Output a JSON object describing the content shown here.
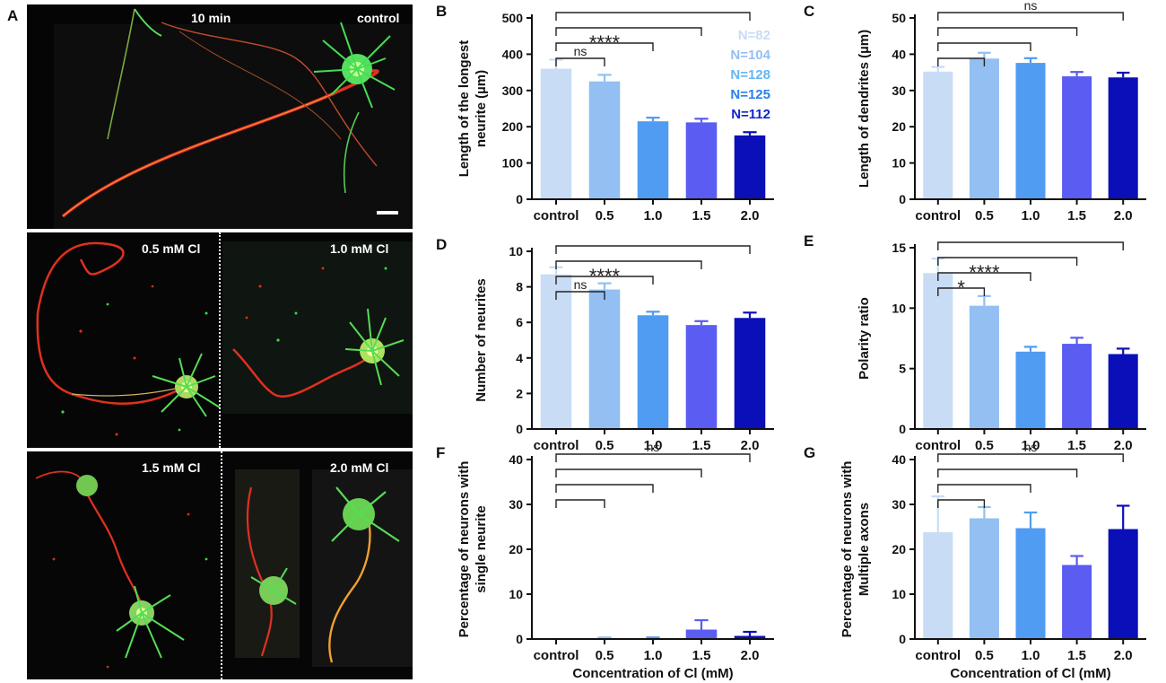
{
  "figure": {
    "panel_a": {
      "letter": "A",
      "top": {
        "left_label": "10 min",
        "right_label": "control"
      },
      "middle": {
        "left_label": "0.5 mM Cl",
        "right_label": "1.0 mM Cl"
      },
      "bottom": {
        "left_label": "1.5 mM Cl",
        "right_label": "2.0 mM Cl"
      }
    },
    "colors": {
      "bars": [
        "#c8dcf5",
        "#93bff2",
        "#4f9cf2",
        "#5a5cf2",
        "#0a0fb8"
      ],
      "n_labels": [
        "#c8dcf5",
        "#93bff2",
        "#65b5f2",
        "#2c7ee8",
        "#1424c8"
      ],
      "neurite_red": "#e03020",
      "neurite_green": "#33dd44",
      "axis": "#111111"
    }
  },
  "chart_data": [
    {
      "id": "B",
      "letter": "B",
      "type": "bar",
      "categories": [
        "control",
        "0.5",
        "1.0",
        "1.5",
        "2.0"
      ],
      "values": [
        360,
        325,
        215,
        212,
        176
      ],
      "errors": [
        25,
        18,
        10,
        10,
        9
      ],
      "ylabel": "Length of the longest neurite (µm)",
      "ylabel_lines": [
        "Length of the longest",
        "neurite (µm)"
      ],
      "ylim": [
        0,
        500
      ],
      "yticks": [
        0,
        100,
        200,
        300,
        400,
        500
      ],
      "brackets": [
        {
          "to": 1,
          "label": "ns"
        },
        {
          "to": 2,
          "label": "****"
        },
        {
          "to": 3,
          "label": ""
        },
        {
          "to": 4,
          "label": ""
        }
      ],
      "n_labels": [
        "N=82",
        "N=104",
        "N=128",
        "N=125",
        "N=112"
      ]
    },
    {
      "id": "C",
      "letter": "C",
      "type": "bar",
      "categories": [
        "control",
        "0.5",
        "1.0",
        "1.5",
        "2.0"
      ],
      "values": [
        35.2,
        38.8,
        37.6,
        33.9,
        33.6
      ],
      "errors": [
        1.3,
        1.6,
        1.3,
        1.2,
        1.3
      ],
      "ylabel": "Length of dendrites (µm)",
      "ylabel_lines": [
        "Length of dendrites (µm)"
      ],
      "ylim": [
        0,
        50
      ],
      "yticks": [
        0,
        10,
        20,
        30,
        40,
        50
      ],
      "brackets": [
        {
          "to": 1,
          "label": ""
        },
        {
          "to": 2,
          "label": ""
        },
        {
          "to": 3,
          "label": ""
        },
        {
          "to": 4,
          "label": "ns"
        }
      ]
    },
    {
      "id": "D",
      "letter": "D",
      "type": "bar",
      "categories": [
        "control",
        "0.5",
        "1.0",
        "1.5",
        "2.0"
      ],
      "values": [
        8.7,
        7.85,
        6.4,
        5.85,
        6.25
      ],
      "errors": [
        0.4,
        0.35,
        0.2,
        0.22,
        0.3
      ],
      "ylabel": "Number of neurites",
      "ylabel_lines": [
        "Number of neurites"
      ],
      "ylim": [
        0,
        10
      ],
      "yticks": [
        0,
        2,
        4,
        6,
        8,
        10
      ],
      "brackets": [
        {
          "to": 1,
          "label": "ns"
        },
        {
          "to": 2,
          "label": "****"
        },
        {
          "to": 3,
          "label": ""
        },
        {
          "to": 4,
          "label": ""
        }
      ]
    },
    {
      "id": "E",
      "letter": "E",
      "type": "bar",
      "categories": [
        "control",
        "0.5",
        "1.0",
        "1.5",
        "2.0"
      ],
      "values": [
        12.9,
        10.2,
        6.4,
        7.05,
        6.2
      ],
      "errors": [
        1.2,
        0.8,
        0.4,
        0.5,
        0.45
      ],
      "ylabel": "Polarity ratio",
      "ylabel_lines": [
        "Polarity ratio"
      ],
      "ylim": [
        0,
        15
      ],
      "yticks": [
        0,
        5,
        10,
        15
      ],
      "brackets": [
        {
          "to": 1,
          "label": "*"
        },
        {
          "to": 2,
          "label": "****"
        },
        {
          "to": 3,
          "label": ""
        },
        {
          "to": 4,
          "label": ""
        }
      ]
    },
    {
      "id": "F",
      "letter": "F",
      "type": "bar",
      "categories": [
        "control",
        "0.5",
        "1.0",
        "1.5",
        "2.0"
      ],
      "values": [
        0,
        0.1,
        0.1,
        2.1,
        0.7
      ],
      "errors": [
        0,
        0.25,
        0.25,
        2.1,
        0.9
      ],
      "ylabel": "Percentage of neurons with single neurite",
      "ylabel_lines": [
        "Percentage of neurons with",
        "single neurite"
      ],
      "xlabel": "Concentration of Cl (mM)",
      "ylim": [
        0,
        40
      ],
      "yticks": [
        0,
        10,
        20,
        30,
        40
      ],
      "brackets": [
        {
          "to": 1,
          "label": ""
        },
        {
          "to": 2,
          "label": ""
        },
        {
          "to": 3,
          "label": ""
        },
        {
          "to": 4,
          "label": "ns"
        }
      ]
    },
    {
      "id": "G",
      "letter": "G",
      "type": "bar",
      "categories": [
        "control",
        "0.5",
        "1.0",
        "1.5",
        "2.0"
      ],
      "values": [
        23.8,
        26.9,
        24.7,
        16.5,
        24.5
      ],
      "errors": [
        8,
        2.5,
        3.5,
        2,
        5.2
      ],
      "ylabel": "Percentage of neurons with Multiple axons",
      "ylabel_lines": [
        "Percentage of neurons with",
        "Multiple axons"
      ],
      "xlabel": "Concentration of Cl (mM)",
      "ylim": [
        0,
        40
      ],
      "yticks": [
        0,
        10,
        20,
        30,
        40
      ],
      "brackets": [
        {
          "to": 1,
          "label": ""
        },
        {
          "to": 2,
          "label": ""
        },
        {
          "to": 3,
          "label": ""
        },
        {
          "to": 4,
          "label": "ns"
        }
      ]
    }
  ]
}
